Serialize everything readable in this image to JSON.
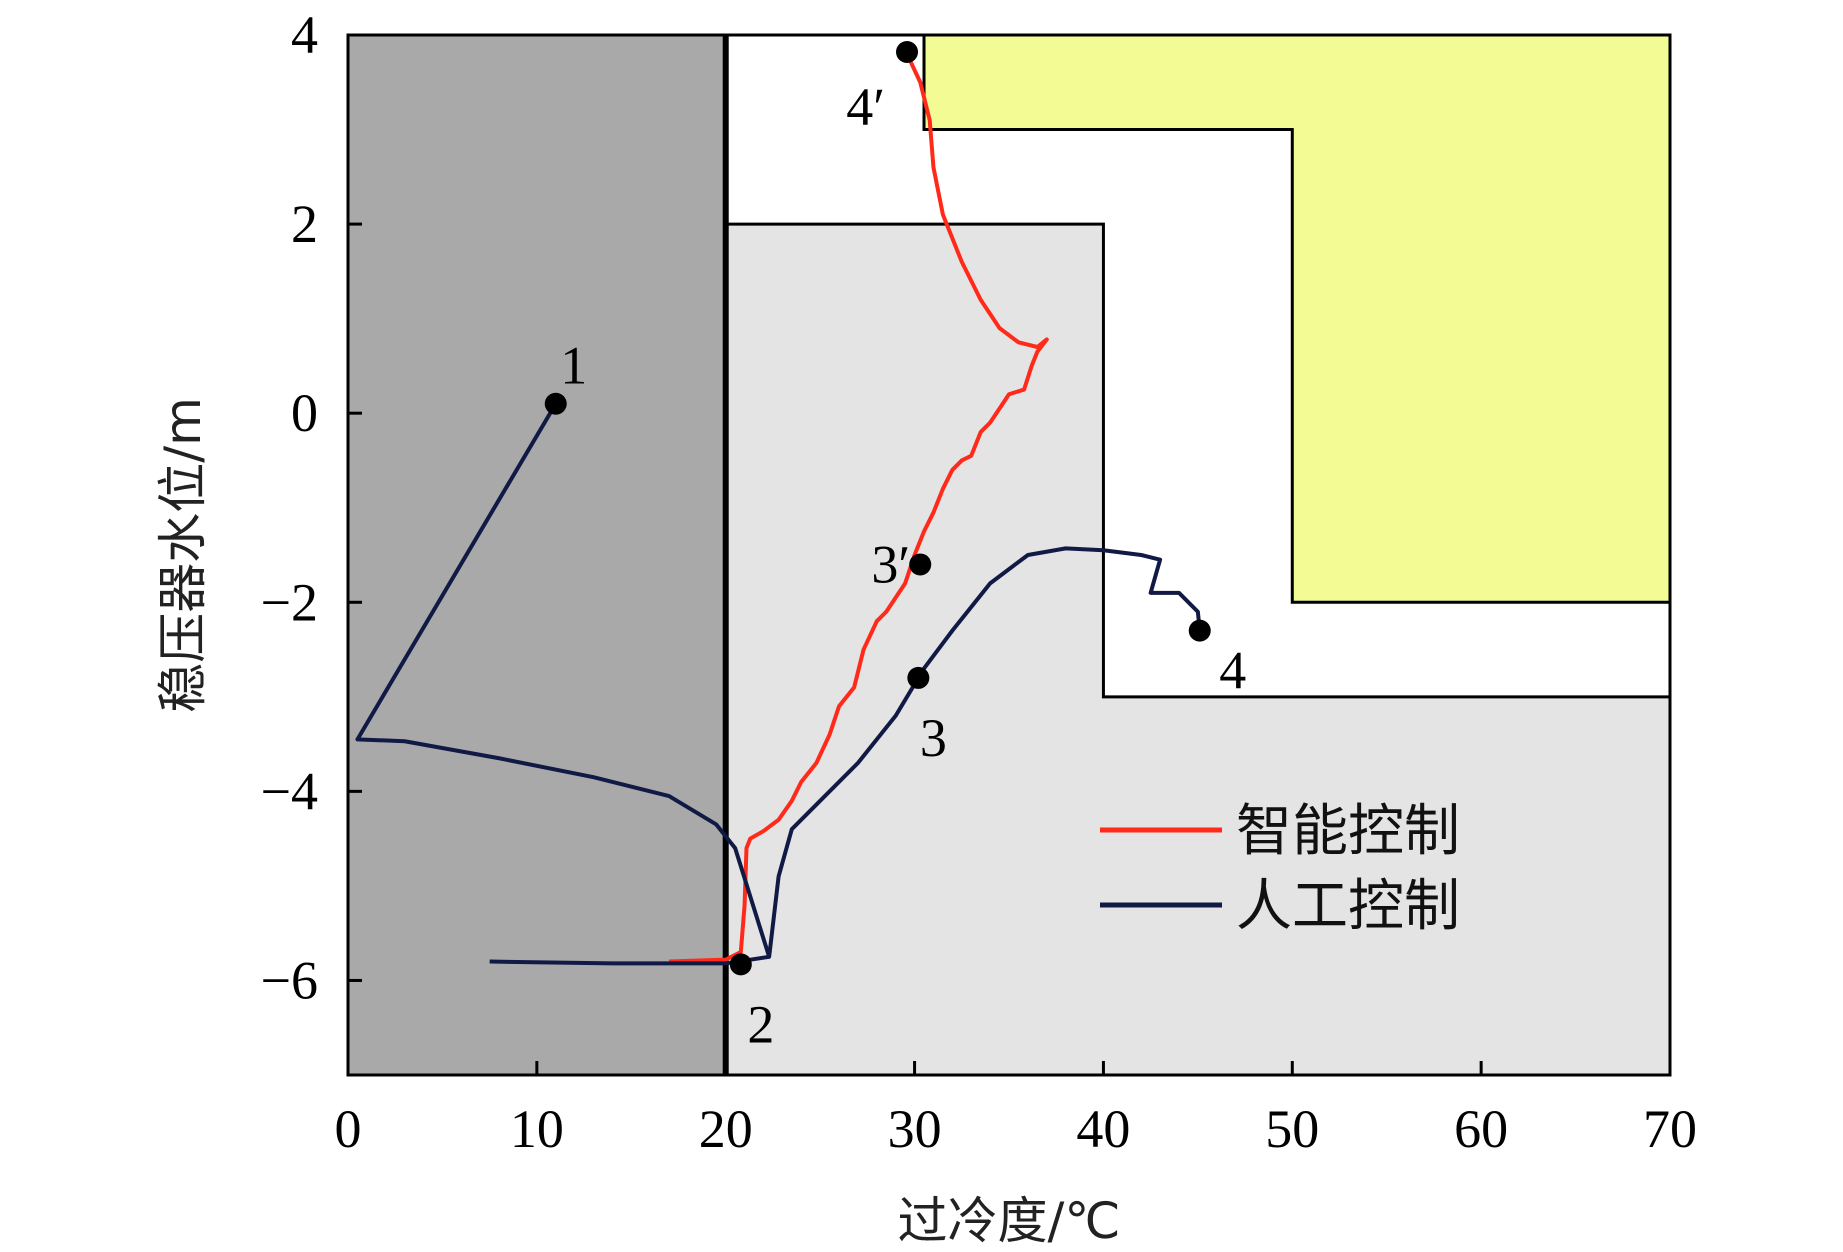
{
  "chart_data": {
    "type": "line",
    "title": "",
    "xlabel": "过冷度/℃",
    "ylabel": "稳压器水位/m",
    "xlim": [
      0,
      70
    ],
    "ylim": [
      -7,
      4
    ],
    "xticks": [
      0,
      10,
      20,
      30,
      40,
      50,
      60,
      70
    ],
    "yticks": [
      4,
      2,
      0,
      -2,
      -4,
      -6
    ],
    "grid": false,
    "legend_position": "bottom-right",
    "colors": {
      "region_dark": "#a9a9a9",
      "region_light": "#e4e4e4",
      "region_yellow": "#f2fb94",
      "smart": "#ff2a1a",
      "manual": "#101a44",
      "marker": "#000000"
    },
    "regions": [
      {
        "name": "dark",
        "polygon": [
          [
            0,
            -7
          ],
          [
            20,
            -7
          ],
          [
            20,
            4
          ],
          [
            0,
            4
          ]
        ]
      },
      {
        "name": "light",
        "polygon": [
          [
            20,
            -7
          ],
          [
            70,
            -7
          ],
          [
            70,
            -3
          ],
          [
            40,
            -3
          ],
          [
            40,
            2
          ],
          [
            20,
            2
          ]
        ]
      },
      {
        "name": "yellow",
        "polygon": [
          [
            30.5,
            4
          ],
          [
            70,
            4
          ],
          [
            70,
            -2
          ],
          [
            50,
            -2
          ],
          [
            50,
            3
          ],
          [
            30.5,
            3
          ]
        ]
      }
    ],
    "series": [
      {
        "name": "智能控制",
        "color": "#ff2a1a",
        "points": [
          [
            17,
            -5.8
          ],
          [
            20,
            -5.78
          ],
          [
            20.8,
            -5.7
          ],
          [
            21,
            -5.2
          ],
          [
            21.1,
            -4.6
          ],
          [
            21.3,
            -4.5
          ],
          [
            22,
            -4.42
          ],
          [
            22.8,
            -4.3
          ],
          [
            23.5,
            -4.1
          ],
          [
            24,
            -3.9
          ],
          [
            24.8,
            -3.7
          ],
          [
            25.5,
            -3.4
          ],
          [
            26,
            -3.1
          ],
          [
            26.8,
            -2.9
          ],
          [
            27.3,
            -2.5
          ],
          [
            28,
            -2.2
          ],
          [
            28.5,
            -2.1
          ],
          [
            29.5,
            -1.8
          ],
          [
            30,
            -1.5
          ],
          [
            30.5,
            -1.25
          ],
          [
            31,
            -1.05
          ],
          [
            31.5,
            -0.8
          ],
          [
            32,
            -0.6
          ],
          [
            32.5,
            -0.5
          ],
          [
            33,
            -0.45
          ],
          [
            33.5,
            -0.2
          ],
          [
            34,
            -0.1
          ],
          [
            34.5,
            0.05
          ],
          [
            35,
            0.2
          ],
          [
            35.8,
            0.25
          ],
          [
            36.2,
            0.5
          ],
          [
            36.5,
            0.65
          ],
          [
            37,
            0.78
          ],
          [
            36.5,
            0.7
          ],
          [
            35.5,
            0.75
          ],
          [
            34.5,
            0.9
          ],
          [
            33.5,
            1.2
          ],
          [
            32.5,
            1.6
          ],
          [
            31.5,
            2.1
          ],
          [
            31,
            2.6
          ],
          [
            30.8,
            3.1
          ],
          [
            30.3,
            3.5
          ],
          [
            29.6,
            3.8
          ]
        ]
      },
      {
        "name": "人工控制",
        "color": "#101a44",
        "points": [
          [
            11,
            0.1
          ],
          [
            0.5,
            -3.45
          ],
          [
            3,
            -3.47
          ],
          [
            8,
            -3.65
          ],
          [
            13,
            -3.85
          ],
          [
            17,
            -4.05
          ],
          [
            19.5,
            -4.35
          ],
          [
            20.5,
            -4.6
          ],
          [
            22.3,
            -5.75
          ],
          [
            22.8,
            -4.9
          ],
          [
            23.5,
            -4.4
          ],
          [
            25,
            -4.1
          ],
          [
            27,
            -3.7
          ],
          [
            29,
            -3.2
          ],
          [
            30.5,
            -2.7
          ],
          [
            32,
            -2.3
          ],
          [
            34,
            -1.8
          ],
          [
            36,
            -1.5
          ],
          [
            38,
            -1.43
          ],
          [
            40,
            -1.45
          ],
          [
            42,
            -1.5
          ],
          [
            43,
            -1.55
          ],
          [
            42.5,
            -1.9
          ],
          [
            44,
            -1.9
          ],
          [
            45,
            -2.1
          ],
          [
            45.1,
            -2.3
          ]
        ],
        "lead_segment": [
          [
            7.5,
            -5.8
          ],
          [
            14,
            -5.82
          ],
          [
            20,
            -5.82
          ],
          [
            22.3,
            -5.75
          ]
        ]
      }
    ],
    "annotations": [
      {
        "label": "1",
        "x": 11,
        "y": 0.1
      },
      {
        "label": "2",
        "x": 20.8,
        "y": -5.83
      },
      {
        "label": "3",
        "x": 30.2,
        "y": -2.8
      },
      {
        "label": "3′",
        "x": 30.3,
        "y": -1.6
      },
      {
        "label": "4",
        "x": 45.1,
        "y": -2.3
      },
      {
        "label": "4′",
        "x": 29.6,
        "y": 3.82
      }
    ],
    "legend": [
      "智能控制",
      "人工控制"
    ]
  }
}
